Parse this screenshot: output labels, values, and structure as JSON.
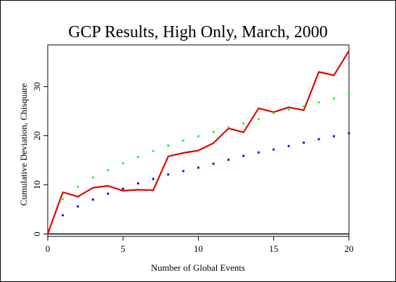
{
  "chart_data": {
    "type": "line",
    "title": "GCP Results, High Only, March, 2000",
    "xlabel": "Number of Global Events",
    "ylabel": "Cumulative Deviation, Chisquare",
    "xlim": [
      0,
      20
    ],
    "ylim": [
      -0.5,
      38.5
    ],
    "x_ticks": [
      0,
      5,
      10,
      15,
      20
    ],
    "y_ticks": [
      0,
      10,
      20,
      30
    ],
    "grid": false,
    "legend": "none",
    "baseline_y": 0,
    "series": [
      {
        "color": "#e00000",
        "style": "line",
        "x": [
          0,
          1,
          2,
          3,
          4,
          5,
          6,
          7,
          8,
          9,
          10,
          11,
          12,
          13,
          14,
          15,
          16,
          17,
          18,
          19,
          20
        ],
        "values": [
          0,
          8.5,
          7.6,
          9.4,
          9.8,
          8.8,
          9.0,
          8.9,
          15.8,
          16.5,
          17.0,
          18.5,
          21.5,
          20.7,
          25.6,
          24.8,
          25.8,
          25.2,
          33.0,
          32.3,
          37.3
        ]
      },
      {
        "color": "#33ee33",
        "style": "points",
        "x": [
          1,
          2,
          3,
          4,
          5,
          6,
          7,
          8,
          9,
          10,
          11,
          12,
          13,
          14,
          15,
          16,
          17,
          18,
          19,
          20
        ],
        "values": [
          7.1,
          9.6,
          11.5,
          13.0,
          14.4,
          15.7,
          16.9,
          18.0,
          19.0,
          19.9,
          20.8,
          21.7,
          22.5,
          23.4,
          24.6,
          25.3,
          26.0,
          26.8,
          27.6,
          28.4
        ]
      },
      {
        "color": "#1111dd",
        "style": "points",
        "x": [
          1,
          2,
          3,
          4,
          5,
          6,
          7,
          8,
          9,
          10,
          11,
          12,
          13,
          14,
          15,
          16,
          17,
          18,
          19,
          20
        ],
        "values": [
          3.8,
          5.6,
          7.0,
          8.2,
          9.2,
          10.3,
          11.2,
          12.1,
          12.8,
          13.5,
          14.3,
          15.1,
          15.9,
          16.6,
          17.2,
          17.9,
          18.6,
          19.3,
          19.9,
          20.5
        ]
      }
    ]
  }
}
